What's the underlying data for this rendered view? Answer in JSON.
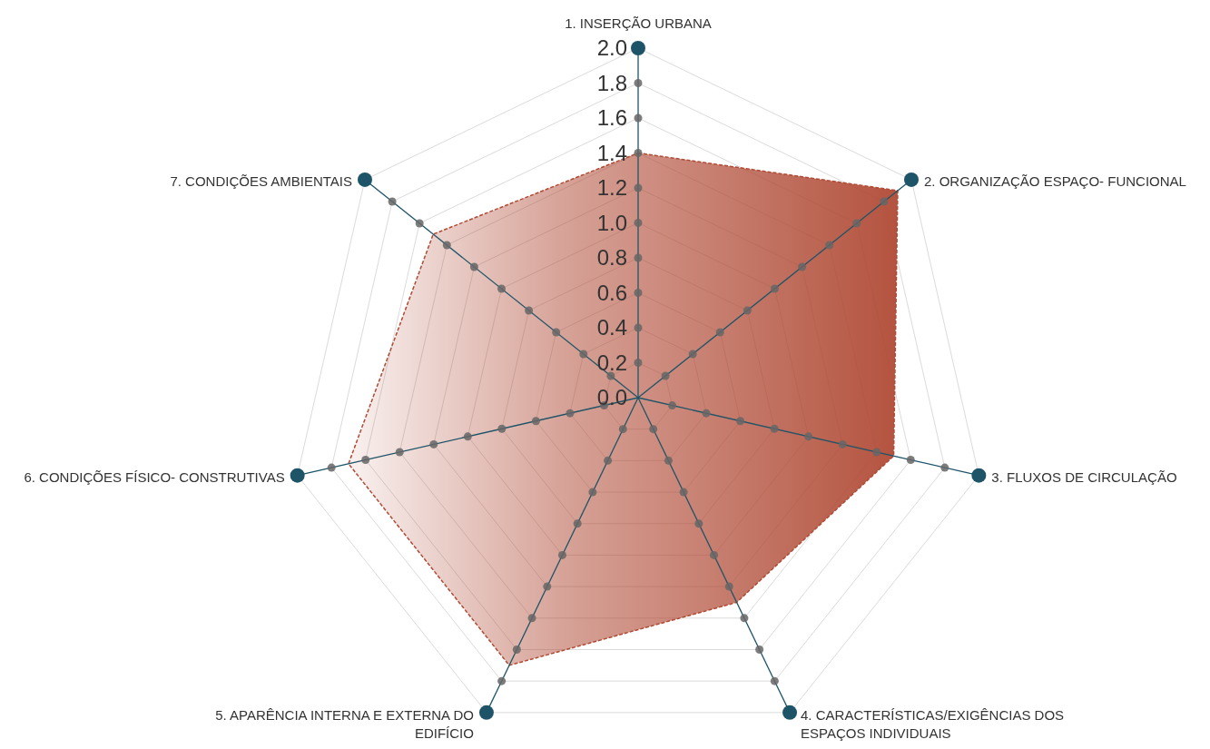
{
  "chart_data": {
    "type": "radar",
    "categories": [
      "1. INSERÇÃO URBANA",
      "2. ORGANIZAÇÃO ESPAÇO- FUNCIONAL",
      "3. FLUXOS DE CIRCULAÇÃO",
      "4. CARACTERÍSTICAS/EXIGÊNCIAS DOS ESPAÇOS INDIVIDUAIS",
      "5. APARÊNCIA INTERNA E EXTERNA DO EDIFÍCIO",
      "6. CONDIÇÕES FÍSICO- CONSTRUTIVAS",
      "7. CONDIÇÕES AMBIENTAIS"
    ],
    "series": [
      {
        "color": "#b04a35",
        "values": [
          1.4,
          1.9,
          1.5,
          1.3,
          1.7,
          1.7,
          1.5
        ]
      }
    ],
    "ylim": [
      0,
      2
    ],
    "yticks": [
      {
        "value": 0,
        "label": "0.0"
      },
      0.2,
      0.4,
      0.6,
      0.8,
      {
        "value": 1,
        "label": "1.0"
      },
      1.2,
      1.4,
      1.6,
      1.8,
      {
        "value": 2,
        "label": "2.0"
      }
    ],
    "grid": true,
    "line_style": "dashed",
    "marker": "none"
  }
}
